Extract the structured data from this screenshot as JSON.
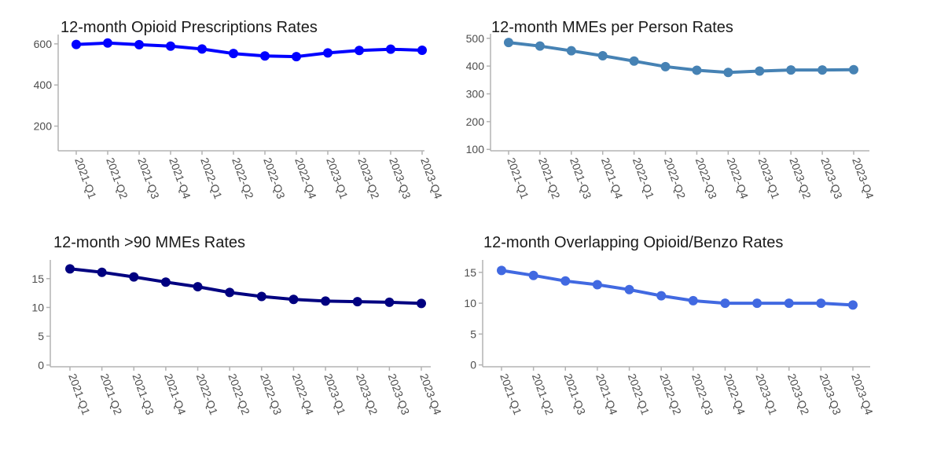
{
  "chart_data": [
    {
      "type": "line",
      "title": "12-month Opioid Prescriptions Rates",
      "xlabel": "",
      "ylabel": "",
      "x": [
        "2021-Q1",
        "2021-Q2",
        "2021-Q3",
        "2021-Q4",
        "2022-Q1",
        "2022-Q2",
        "2022-Q3",
        "2022-Q4",
        "2023-Q1",
        "2023-Q2",
        "2023-Q3",
        "2023-Q4"
      ],
      "series": [
        {
          "values": [
            597,
            604,
            596,
            589,
            575,
            553,
            541,
            538,
            556,
            568,
            574,
            569
          ],
          "color": "#0000ff"
        }
      ],
      "yticks": [
        200,
        400,
        600
      ],
      "ylim": [
        80,
        630
      ],
      "grid": false
    },
    {
      "type": "line",
      "title": "12-month MMEs per Person Rates",
      "xlabel": "",
      "ylabel": "",
      "x": [
        "2021-Q1",
        "2021-Q2",
        "2021-Q3",
        "2021-Q4",
        "2022-Q1",
        "2022-Q2",
        "2022-Q3",
        "2022-Q4",
        "2023-Q1",
        "2023-Q2",
        "2023-Q3",
        "2023-Q4"
      ],
      "series": [
        {
          "values": [
            485,
            472,
            455,
            437,
            418,
            398,
            385,
            377,
            382,
            386,
            386,
            387
          ],
          "color": "#4682b4"
        }
      ],
      "yticks": [
        100,
        200,
        300,
        400,
        500
      ],
      "ylim": [
        95,
        505
      ],
      "grid": false
    },
    {
      "type": "line",
      "title": "12-month >90 MMEs Rates",
      "xlabel": "",
      "ylabel": "",
      "x": [
        "2021-Q1",
        "2021-Q2",
        "2021-Q3",
        "2021-Q4",
        "2022-Q1",
        "2022-Q2",
        "2022-Q3",
        "2022-Q4",
        "2023-Q1",
        "2023-Q2",
        "2023-Q3",
        "2023-Q4"
      ],
      "series": [
        {
          "values": [
            16.7,
            16.1,
            15.3,
            14.4,
            13.6,
            12.6,
            11.9,
            11.4,
            11.1,
            11.0,
            10.9,
            10.7
          ],
          "color": "#000080"
        }
      ],
      "yticks": [
        0,
        5,
        10,
        15
      ],
      "ylim": [
        -0.3,
        17.7
      ],
      "grid": false
    },
    {
      "type": "line",
      "title": "12-month Overlapping Opioid/Benzo Rates",
      "xlabel": "",
      "ylabel": "",
      "x": [
        "2021-Q1",
        "2021-Q2",
        "2021-Q3",
        "2021-Q4",
        "2022-Q1",
        "2022-Q2",
        "2022-Q3",
        "2022-Q4",
        "2023-Q1",
        "2023-Q2",
        "2023-Q3",
        "2023-Q4"
      ],
      "series": [
        {
          "values": [
            15.3,
            14.5,
            13.6,
            13.0,
            12.2,
            11.2,
            10.4,
            10.0,
            10.0,
            10.0,
            10.0,
            9.7
          ],
          "color": "#4169e1"
        }
      ],
      "yticks": [
        0,
        5,
        10,
        15
      ],
      "ylim": [
        -0.3,
        16.5
      ],
      "grid": false
    }
  ]
}
